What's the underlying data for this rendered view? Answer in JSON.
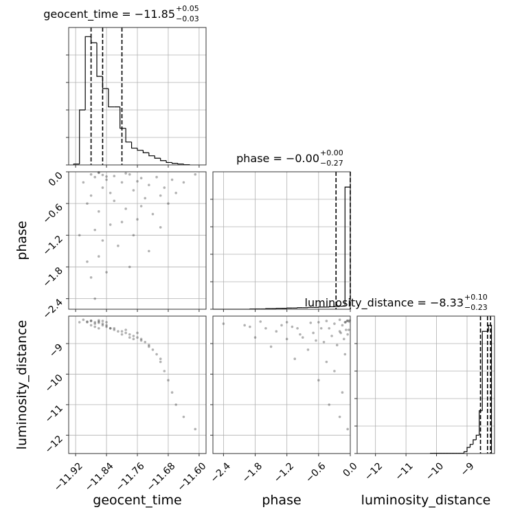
{
  "chart_data": {
    "type": "corner",
    "grid": true,
    "color": "#000000",
    "parameters": [
      {
        "name": "geocent_time",
        "title": "geocent_time = −11.85",
        "upper": "+0.05",
        "lower": "−0.03",
        "lim": [
          -11.938,
          -11.582
        ],
        "ticks": [
          {
            "value": -11.92,
            "label": "−11.92"
          },
          {
            "value": -11.84,
            "label": "−11.84"
          },
          {
            "value": -11.76,
            "label": "−11.76"
          },
          {
            "value": -11.68,
            "label": "−11.68"
          },
          {
            "value": -11.6,
            "label": "−11.60"
          }
        ],
        "quantiles": [
          -11.88,
          -11.85,
          -11.8
        ],
        "bins": [
          -11.925,
          -11.91,
          -11.895,
          -11.88,
          -11.865,
          -11.85,
          -11.835,
          -11.82,
          -11.805,
          -11.79,
          -11.775,
          -11.76,
          -11.745,
          -11.73,
          -11.715,
          -11.7,
          -11.685,
          -11.67,
          -11.655,
          -11.64,
          -11.625
        ],
        "counts": [
          3,
          180,
          420,
          400,
          290,
          250,
          190,
          190,
          120,
          75,
          55,
          48,
          40,
          30,
          22,
          14,
          8,
          5,
          3,
          1
        ]
      },
      {
        "name": "phase",
        "title": "phase = −0.00",
        "upper": "+0.00",
        "lower": "−0.27",
        "lim": [
          -2.6,
          0
        ],
        "ticks": [
          {
            "value": -2.4,
            "label": "−2.4"
          },
          {
            "value": -1.8,
            "label": "−1.8"
          },
          {
            "value": -1.2,
            "label": "−1.2"
          },
          {
            "value": -0.6,
            "label": "−0.6"
          },
          {
            "value": 0,
            "label": "0.0"
          }
        ],
        "quantiles": [
          -0.27,
          0,
          0
        ],
        "bins": [
          -2.6,
          -2.5,
          -2.4,
          -2.3,
          -2.2,
          -2.1,
          -2.0,
          -1.9,
          -1.8,
          -1.7,
          -1.6,
          -1.5,
          -1.4,
          -1.3,
          -1.2,
          -1.1,
          -1.0,
          -0.9,
          -0.8,
          -0.7,
          -0.6,
          -0.5,
          -0.4,
          -0.3,
          -0.2,
          -0.1,
          0
        ],
        "counts": [
          0,
          0,
          0,
          0,
          0,
          0,
          0,
          1,
          1,
          1,
          2,
          2,
          3,
          3,
          4,
          4,
          5,
          5,
          6,
          6,
          7,
          7,
          8,
          9,
          10,
          400
        ]
      },
      {
        "name": "luminosity_distance",
        "title": "luminosity_distance = −8.33",
        "upper": "+0.10",
        "lower": "−0.23",
        "lim": [
          -12.6,
          -8.1
        ],
        "ticks": [
          {
            "value": -12,
            "label": "−12"
          },
          {
            "value": -11,
            "label": "−11"
          },
          {
            "value": -10,
            "label": "−10"
          },
          {
            "value": -9,
            "label": "−9"
          }
        ],
        "quantiles": [
          -8.56,
          -8.33,
          -8.23
        ],
        "bins": [
          -10.2,
          -10.1,
          -10.0,
          -9.9,
          -9.8,
          -9.7,
          -9.6,
          -9.5,
          -9.4,
          -9.3,
          -9.2,
          -9.1,
          -9.0,
          -8.9,
          -8.8,
          -8.7,
          -8.6,
          -8.5,
          -8.4,
          -8.3,
          -8.2
        ],
        "counts": [
          1,
          1,
          1,
          1,
          1,
          1,
          1,
          1,
          1,
          1,
          1,
          6,
          20,
          30,
          45,
          60,
          140,
          400,
          400,
          420
        ]
      }
    ],
    "hist_ylim": [
      0,
      450
    ],
    "hist_yticks": [
      0,
      90,
      180,
      270,
      360
    ],
    "samples": [
      [
        -11.88,
        -11.87,
        -11.86,
        -11.85,
        -11.84,
        -11.89,
        -11.87,
        -11.86,
        -11.88,
        -11.83,
        -11.82,
        -11.8,
        -11.79,
        -11.78,
        -11.77,
        -11.76,
        -11.75,
        -11.74,
        -11.73,
        -11.72,
        -11.71,
        -11.7,
        -11.69,
        -11.68,
        -11.67,
        -11.66,
        -11.64,
        -11.61,
        -11.9,
        -11.88,
        -11.86,
        -11.85,
        -11.84,
        -11.87,
        -11.83,
        -11.81,
        -11.79,
        -11.77,
        -11.75,
        -11.73,
        -11.91,
        -11.89,
        -11.86,
        -11.85,
        -11.84,
        -11.82,
        -11.8,
        -11.78,
        -11.76,
        -11.7
      ],
      [
        -0.05,
        -0.1,
        -0.02,
        -0.3,
        -0.15,
        -0.6,
        -1.1,
        -1.6,
        -2.0,
        -0.4,
        -0.08,
        -0.2,
        -0.7,
        -0.05,
        -0.35,
        -0.9,
        -0.12,
        -0.5,
        -0.25,
        -0.8,
        -0.1,
        -0.45,
        -0.3,
        -0.6,
        -0.15,
        -0.4,
        -0.2,
        -0.05,
        -0.2,
        -0.45,
        -0.75,
        -1.3,
        -1.9,
        -2.4,
        -1.0,
        -1.4,
        -0.03,
        -1.2,
        -0.65,
        -1.5,
        -1.2,
        -1.7,
        -0.01,
        -0.06,
        -0.09,
        -0.55,
        -0.95,
        -1.8,
        -0.18,
        -1.05
      ],
      [
        -8.25,
        -8.3,
        -8.28,
        -8.35,
        -8.4,
        -8.3,
        -8.45,
        -8.5,
        -8.4,
        -8.5,
        -8.55,
        -8.6,
        -8.65,
        -8.7,
        -8.75,
        -8.8,
        -8.85,
        -8.95,
        -9.05,
        -9.2,
        -9.35,
        -9.6,
        -9.9,
        -10.2,
        -10.6,
        -11.0,
        -11.4,
        -11.8,
        -8.22,
        -8.26,
        -8.32,
        -8.4,
        -8.45,
        -8.35,
        -8.5,
        -8.6,
        -8.55,
        -8.85,
        -8.9,
        -9.1,
        -8.3,
        -8.28,
        -8.24,
        -8.26,
        -8.3,
        -8.5,
        -8.7,
        -8.8,
        -8.65,
        -9.5
      ]
    ]
  }
}
